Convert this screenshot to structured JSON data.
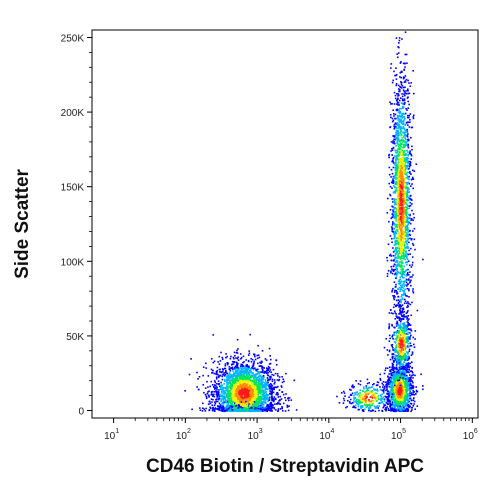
{
  "chart_data": {
    "type": "scatter",
    "title": "",
    "xlabel": "CD46 Biotin / Streptavidin APC",
    "ylabel": "Side Scatter",
    "x_scale": "log",
    "xlim": [
      5,
      1200000
    ],
    "ylim": [
      -5000,
      255000
    ],
    "x_ticks": [
      {
        "value": 10,
        "base": "10",
        "exp": "1"
      },
      {
        "value": 100,
        "base": "10",
        "exp": "2"
      },
      {
        "value": 1000,
        "base": "10",
        "exp": "3"
      },
      {
        "value": 10000,
        "base": "10",
        "exp": "4"
      },
      {
        "value": 100000,
        "base": "10",
        "exp": "5"
      },
      {
        "value": 1000000,
        "base": "10",
        "exp": "6"
      }
    ],
    "y_ticks": [
      {
        "value": 0,
        "label": "0"
      },
      {
        "value": 50000,
        "label": "50K"
      },
      {
        "value": 100000,
        "label": "100K"
      },
      {
        "value": 150000,
        "label": "150K"
      },
      {
        "value": 200000,
        "label": "200K"
      },
      {
        "value": 250000,
        "label": "250K"
      }
    ],
    "grid": false,
    "legend": "none",
    "density_colors": [
      "#0000ff",
      "#00b4ff",
      "#00e65a",
      "#f0f000",
      "#ff8c00",
      "#ff1a1a"
    ],
    "populations": [
      {
        "x_center": 650,
        "x_spread_decades": 0.22,
        "y_center": 12000,
        "y_spread": 11000,
        "relative_count": 1.0
      },
      {
        "x_center": 100000,
        "x_spread_decades": 0.07,
        "y_center": 140000,
        "y_spread": 42000,
        "relative_count": 0.75
      },
      {
        "x_center": 95000,
        "x_spread_decades": 0.09,
        "y_center": 14000,
        "y_spread": 9000,
        "relative_count": 0.45
      },
      {
        "x_center": 100000,
        "x_spread_decades": 0.07,
        "y_center": 45000,
        "y_spread": 10000,
        "relative_count": 0.18
      },
      {
        "x_center": 35000,
        "x_spread_decades": 0.15,
        "y_center": 9000,
        "y_spread": 5000,
        "relative_count": 0.12
      }
    ]
  }
}
